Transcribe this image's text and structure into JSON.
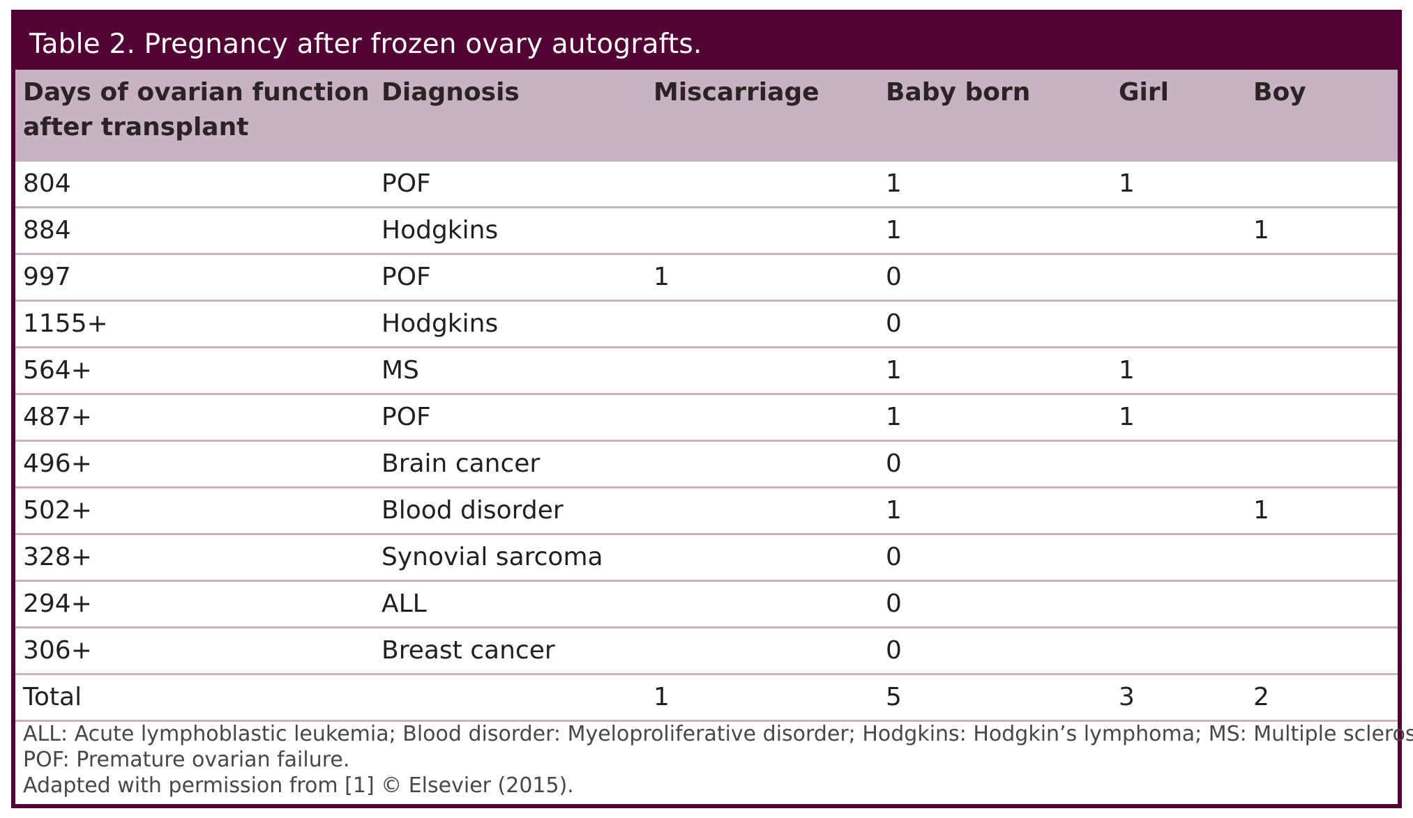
{
  "table": {
    "title": "Table 2. Pregnancy after frozen ovary autografts.",
    "headers": {
      "days_line1": "Days of ovarian function",
      "days_line2": "after transplant",
      "diagnosis": "Diagnosis",
      "miscarriage": "Miscarriage",
      "baby_born": "Baby born",
      "girl": "Girl",
      "boy": "Boy"
    },
    "rows": [
      {
        "days": "804",
        "diagnosis": "POF",
        "miscarriage": "",
        "baby_born": "1",
        "girl": "1",
        "boy": ""
      },
      {
        "days": "884",
        "diagnosis": "Hodgkins",
        "miscarriage": "",
        "baby_born": "1",
        "girl": "",
        "boy": "1"
      },
      {
        "days": "997",
        "diagnosis": "POF",
        "miscarriage": "1",
        "baby_born": "0",
        "girl": "",
        "boy": ""
      },
      {
        "days": "1155+",
        "diagnosis": "Hodgkins",
        "miscarriage": "",
        "baby_born": "0",
        "girl": "",
        "boy": ""
      },
      {
        "days": "564+",
        "diagnosis": "MS",
        "miscarriage": "",
        "baby_born": "1",
        "girl": "1",
        "boy": ""
      },
      {
        "days": "487+",
        "diagnosis": "POF",
        "miscarriage": "",
        "baby_born": "1",
        "girl": "1",
        "boy": ""
      },
      {
        "days": "496+",
        "diagnosis": "Brain cancer",
        "miscarriage": "",
        "baby_born": "0",
        "girl": "",
        "boy": ""
      },
      {
        "days": "502+",
        "diagnosis": "Blood disorder",
        "miscarriage": "",
        "baby_born": "1",
        "girl": "",
        "boy": "1"
      },
      {
        "days": "328+",
        "diagnosis": "Synovial sarcoma",
        "miscarriage": "",
        "baby_born": "0",
        "girl": "",
        "boy": ""
      },
      {
        "days": "294+",
        "diagnosis": "ALL",
        "miscarriage": "",
        "baby_born": "0",
        "girl": "",
        "boy": ""
      },
      {
        "days": "306+",
        "diagnosis": "Breast cancer",
        "miscarriage": "",
        "baby_born": "0",
        "girl": "",
        "boy": ""
      },
      {
        "days": "Total",
        "diagnosis": "",
        "miscarriage": "1",
        "baby_born": "5",
        "girl": "3",
        "boy": "2"
      }
    ],
    "footnote_line1": "ALL: Acute lymphoblastic leukemia; Blood disorder: Myeloproliferative disorder; Hodgkins: Hodgkin’s lymphoma; MS: Multiple sclerosis;",
    "footnote_line2": "POF: Premature ovarian failure.",
    "source_note": "Adapted with permission from [1] © Elsevier (2015)."
  },
  "colors": {
    "frame": "#520233",
    "header_band": "#c8b3c3",
    "title_text": "#ffffff",
    "body_text": "#231f20"
  }
}
